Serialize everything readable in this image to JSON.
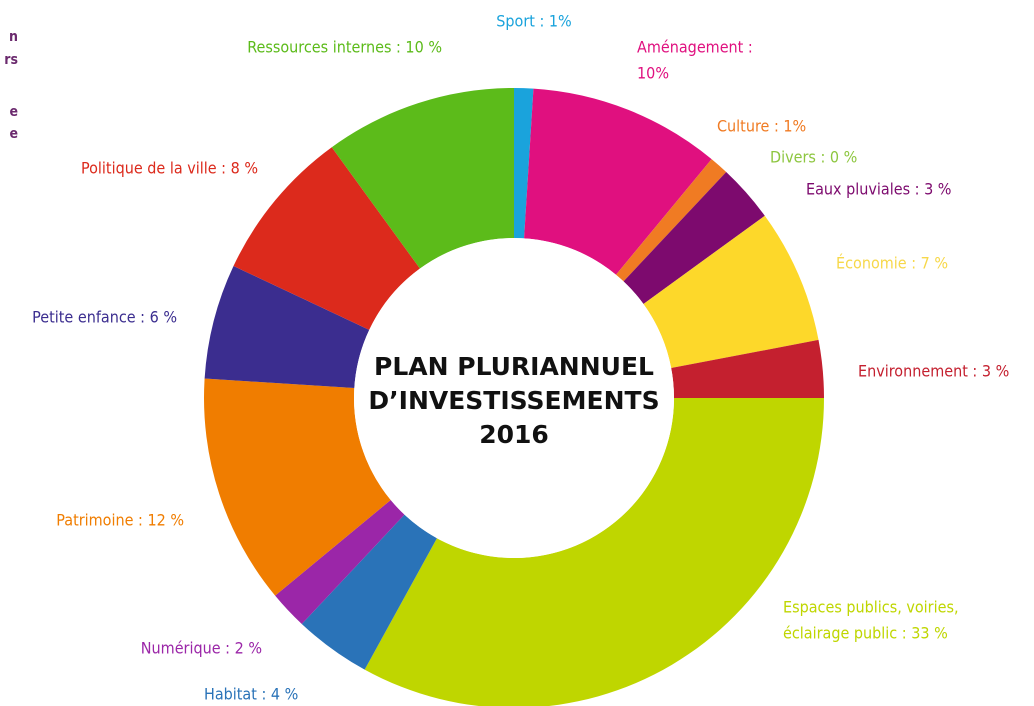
{
  "chart_data": {
    "type": "donut",
    "title": [
      "PLAN PLURIANNUEL",
      "D’INVESTISSEMENTS",
      "2016"
    ],
    "side_fragments": [
      "n",
      "rs",
      "e",
      "e"
    ],
    "values": [
      1,
      10,
      1,
      0,
      3,
      7,
      3,
      33,
      4,
      2,
      12,
      6,
      8,
      10
    ],
    "value_labels": [
      [
        "Sport : 1%"
      ],
      [
        "Aménagement :",
        "10%"
      ],
      [
        "Culture : 1%"
      ],
      [
        "Divers : 0 %"
      ],
      [
        "Eaux pluviales : 3 %"
      ],
      [
        "Économie : 7 %"
      ],
      [
        "Environnement : 3 %"
      ],
      [
        "Espaces publics, voiries,",
        "éclairage public : 33 %"
      ],
      [
        "Habitat : 4 %"
      ],
      [
        "Numérique : 2 %"
      ],
      [
        "Patrimoine : 12 %"
      ],
      [
        "Petite enfance : 6 %"
      ],
      [
        "Politique de la ville : 8 %"
      ],
      [
        "Ressources internes : 10 %"
      ]
    ],
    "colors": [
      "#1aa3dc",
      "#e0107f",
      "#f07b23",
      "#8dc63f",
      "#7d0a6e",
      "#fdd82a",
      "#c4202f",
      "#bfd600",
      "#2a73b8",
      "#9b26a8",
      "#f07d00",
      "#3b2d8f",
      "#dc2a1c",
      "#5cbb1a"
    ],
    "label_colors": [
      "#1aa3dc",
      "#e0107f",
      "#f07b23",
      "#8dc63f",
      "#7d0a6e",
      "#f7d84a",
      "#c4202f",
      "#bfd600",
      "#2a73b8",
      "#9b26a8",
      "#f07d00",
      "#3b2d8f",
      "#dc2a1c",
      "#5cbb1a"
    ]
  }
}
